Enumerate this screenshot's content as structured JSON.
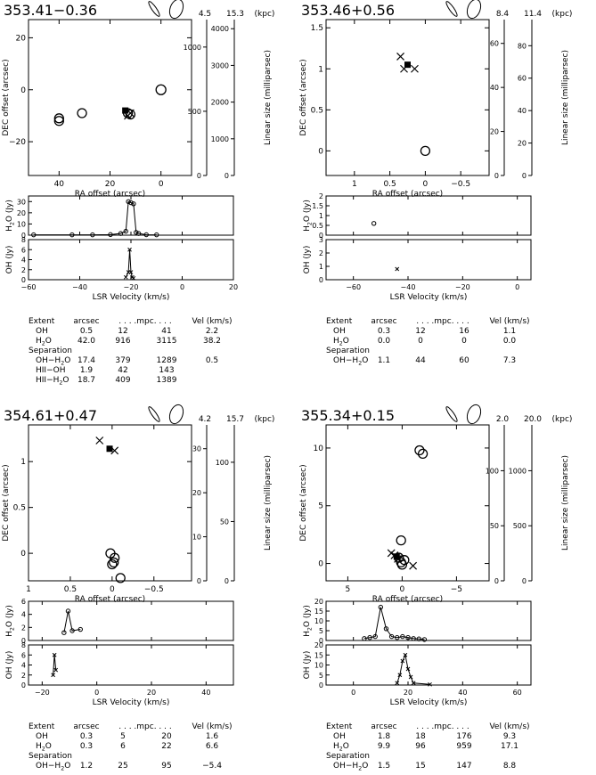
{
  "labels": {
    "ra_axis": "RA offset (arcsec)",
    "dec_axis": "DEC offset (arcsec)",
    "size_axis": "Linear size (milliparsec)",
    "velocity_axis": "LSR Velocity (km/s)",
    "h2o_axis": "H2O (Jy)",
    "oh_axis": "OH (Jy)",
    "distance_unit": "(kpc)",
    "table_headers": [
      "Extent",
      "arcsec",
      ". . . .mpc. . . .",
      "Vel (km/s)"
    ],
    "separation_label": "Separation"
  },
  "chart_data": [
    {
      "type": "scatter",
      "title": "353.41−0.36",
      "distances_kpc": [
        "4.5",
        "15.3"
      ],
      "map": {
        "xlim": [
          52,
          -12
        ],
        "ylim": [
          -33,
          27
        ],
        "xticks": [
          40,
          20,
          0
        ],
        "yticks": [
          20,
          0,
          -20
        ],
        "size_axes": [
          {
            "max": 1200,
            "ticks": [
              500,
              1000
            ]
          },
          {
            "max": 4200,
            "ticks": [
              1000,
              2000,
              3000,
              4000
            ]
          }
        ],
        "oh": [
          [
            13,
            -10
          ],
          [
            12,
            -9
          ]
        ],
        "h2o": [
          [
            40,
            -11
          ],
          [
            40,
            -12
          ],
          [
            31,
            -9
          ],
          [
            13,
            -9
          ],
          [
            12,
            -9.5
          ]
        ],
        "hii": [
          [
            0,
            0
          ]
        ],
        "filled_square": [
          [
            14,
            -8
          ]
        ]
      },
      "spectra": {
        "xlim": [
          -60,
          20
        ],
        "xticks": [
          -60,
          -40,
          -20,
          0,
          20
        ],
        "h2o": {
          "ylim": [
            0,
            35
          ],
          "yticks": [
            0,
            10,
            20,
            30
          ],
          "v": [
            -58,
            -43,
            -35,
            -28,
            -24,
            -22,
            -21,
            -20,
            -19,
            -18,
            -17,
            -14,
            -10
          ],
          "f": [
            0.3,
            0.3,
            0.3,
            0.5,
            1.5,
            3.5,
            30,
            29,
            28,
            2.5,
            1.5,
            0.4,
            0.3
          ]
        },
        "oh": {
          "ylim": [
            0,
            8
          ],
          "yticks": [
            0,
            2,
            4,
            6,
            8
          ],
          "v": [
            -22,
            -21,
            -20.5,
            -20,
            -19.5,
            -19
          ],
          "f": [
            0.5,
            1.5,
            6,
            1.5,
            0.5,
            0.3
          ]
        }
      },
      "table": {
        "extent": [
          [
            "OH",
            "0.5",
            "12",
            "41",
            "2.2"
          ],
          [
            "H2O",
            "42.0",
            "916",
            "3115",
            "38.2"
          ]
        ],
        "separation": [
          [
            "OH−H2O",
            "17.4",
            "379",
            "1289",
            "0.5"
          ],
          [
            "HII−OH",
            "1.9",
            "42",
            "143",
            ""
          ],
          [
            "HII−H2O",
            "18.7",
            "409",
            "1389",
            ""
          ]
        ]
      }
    },
    {
      "type": "scatter",
      "title": "353.46+0.56",
      "distances_kpc": [
        "8.4",
        "11.4"
      ],
      "map": {
        "xlim": [
          1.4,
          -0.9
        ],
        "ylim": [
          -0.3,
          1.6
        ],
        "xticks": [
          1,
          0.5,
          0,
          -0.5
        ],
        "yticks": [
          0,
          0.5,
          1,
          1.5
        ],
        "size_axes": [
          {
            "max": 70,
            "ticks": [
              20,
              40,
              60
            ]
          },
          {
            "max": 95,
            "ticks": [
              20,
              40,
              60,
              80
            ]
          }
        ],
        "oh": [
          [
            0.35,
            1.15
          ],
          [
            0.3,
            1.0
          ],
          [
            0.15,
            1.0
          ]
        ],
        "h2o": [
          [
            0.0,
            0.0
          ]
        ],
        "hii": [],
        "filled_square": [
          [
            0.25,
            1.05
          ]
        ]
      },
      "spectra": {
        "xlim": [
          -70,
          5
        ],
        "xticks": [
          -60,
          -40,
          -20,
          0
        ],
        "h2o": {
          "ylim": [
            0,
            2
          ],
          "yticks": [
            0,
            0.5,
            1,
            1.5,
            2
          ],
          "v": [
            -52.5
          ],
          "f": [
            0.6
          ]
        },
        "oh": {
          "ylim": [
            0,
            3
          ],
          "yticks": [
            0,
            1,
            2,
            3
          ],
          "v": [
            -44
          ],
          "f": [
            0.8
          ]
        }
      },
      "table": {
        "extent": [
          [
            "OH",
            "0.3",
            "12",
            "16",
            "1.1"
          ],
          [
            "H2O",
            "0.0",
            "0",
            "0",
            "0.0"
          ]
        ],
        "separation": [
          [
            "OH−H2O",
            "1.1",
            "44",
            "60",
            "7.3"
          ]
        ]
      }
    },
    {
      "type": "scatter",
      "title": "354.61+0.47",
      "distances_kpc": [
        "4.2",
        "15.7"
      ],
      "map": {
        "xlim": [
          1,
          -0.95
        ],
        "ylim": [
          -0.3,
          1.4
        ],
        "xticks": [
          1,
          0.5,
          0,
          -0.5
        ],
        "yticks": [
          0,
          0.5,
          1
        ],
        "size_axes": [
          {
            "max": 35,
            "ticks": [
              10,
              20,
              30
            ]
          },
          {
            "max": 130,
            "ticks": [
              50,
              100
            ]
          }
        ],
        "oh": [
          [
            0.15,
            1.23
          ],
          [
            -0.03,
            1.12
          ]
        ],
        "h2o": [
          [
            0.02,
            0.0
          ],
          [
            -0.03,
            -0.05
          ],
          [
            -0.02,
            -0.1
          ],
          [
            0.0,
            -0.12
          ],
          [
            -0.1,
            -0.27
          ]
        ],
        "hii": [],
        "filled_square": [
          [
            0.03,
            1.14
          ]
        ]
      },
      "spectra": {
        "xlim": [
          -25,
          50
        ],
        "xticks": [
          -20,
          0,
          20,
          40
        ],
        "h2o": {
          "ylim": [
            0,
            6
          ],
          "yticks": [
            0,
            2,
            4,
            6
          ],
          "v": [
            -12,
            -10.5,
            -9,
            -6
          ],
          "f": [
            1.2,
            4.5,
            1.5,
            1.7
          ]
        },
        "oh": {
          "ylim": [
            0,
            8
          ],
          "yticks": [
            0,
            2,
            4,
            6,
            8
          ],
          "v": [
            -16,
            -15.5,
            -15
          ],
          "f": [
            2,
            6,
            3
          ]
        }
      },
      "table": {
        "extent": [
          [
            "OH",
            "0.3",
            "5",
            "20",
            "1.6"
          ],
          [
            "H2O",
            "0.3",
            "6",
            "22",
            "6.6"
          ]
        ],
        "separation": [
          [
            "OH−H2O",
            "1.2",
            "25",
            "95",
            "−5.4"
          ]
        ]
      }
    },
    {
      "type": "scatter",
      "title": "355.34+0.15",
      "distances_kpc": [
        "2.0",
        "20.0"
      ],
      "map": {
        "xlim": [
          7,
          -8
        ],
        "ylim": [
          -1.5,
          12
        ],
        "xticks": [
          5,
          0,
          -5
        ],
        "yticks": [
          0,
          5,
          10
        ],
        "size_axes": [
          {
            "max": 140,
            "ticks": [
              50,
              100
            ]
          },
          {
            "max": 1400,
            "ticks": [
              500,
              1000
            ]
          }
        ],
        "oh": [
          [
            1.0,
            0.9
          ],
          [
            0.7,
            0.7
          ],
          [
            0.4,
            0.4
          ],
          [
            -1.0,
            -0.2
          ]
        ],
        "h2o": [
          [
            -1.6,
            9.8
          ],
          [
            -1.9,
            9.5
          ],
          [
            0.1,
            0.1
          ],
          [
            0.0,
            -0.1
          ],
          [
            0.3,
            0.5
          ],
          [
            -0.2,
            0.3
          ],
          [
            0.1,
            2.0
          ]
        ],
        "hii": [],
        "filled_square": [
          [
            0.5,
            0.6
          ]
        ]
      },
      "spectra": {
        "xlim": [
          -10,
          65
        ],
        "xticks": [
          0,
          20,
          40,
          60
        ],
        "h2o": {
          "ylim": [
            0,
            20
          ],
          "yticks": [
            0,
            5,
            10,
            15,
            20
          ],
          "v": [
            4,
            6,
            8,
            10,
            12,
            14,
            16,
            18,
            20,
            22,
            24,
            26
          ],
          "f": [
            1,
            1.5,
            2,
            17,
            6,
            2,
            1.5,
            2,
            1.5,
            1,
            0.8,
            0.5
          ]
        },
        "oh": {
          "ylim": [
            0,
            20
          ],
          "yticks": [
            0,
            5,
            10,
            15,
            20
          ],
          "v": [
            16,
            17,
            18,
            19,
            20,
            21,
            22,
            28
          ],
          "f": [
            1,
            5,
            12,
            15,
            8,
            4,
            1,
            0.3
          ]
        }
      },
      "table": {
        "extent": [
          [
            "OH",
            "1.8",
            "18",
            "176",
            "9.3"
          ],
          [
            "H2O",
            "9.9",
            "96",
            "959",
            "17.1"
          ]
        ],
        "separation": [
          [
            "OH−H2O",
            "1.5",
            "15",
            "147",
            "8.8"
          ]
        ]
      }
    }
  ]
}
